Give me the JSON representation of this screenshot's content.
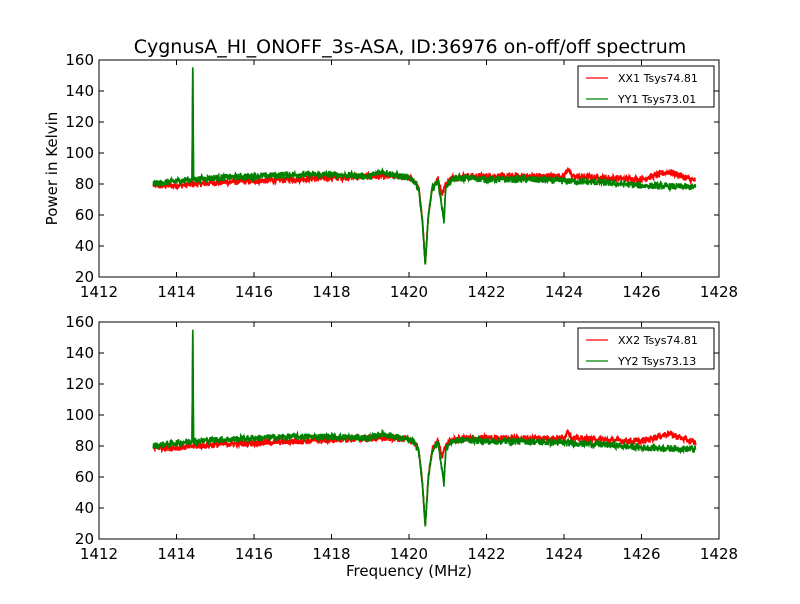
{
  "title": "CygnusA_HI_ONOFF_3s-ASA, ID:36976 on-off/off spectrum",
  "colors": {
    "xx": "#ff0000",
    "yy": "#008000"
  },
  "chart_data": [
    {
      "type": "line",
      "title": "CygnusA_HI_ONOFF_3s-ASA, ID:36976 on-off/off spectrum",
      "xlabel": "",
      "ylabel": "Power in Kelvin",
      "xlim": [
        1412,
        1428
      ],
      "ylim": [
        20,
        160
      ],
      "xticks": [
        "1412",
        "1414",
        "1416",
        "1418",
        "1420",
        "1422",
        "1424",
        "1426",
        "1428"
      ],
      "yticks": [
        "20",
        "40",
        "60",
        "80",
        "100",
        "120",
        "140",
        "160"
      ],
      "legend": "top-right",
      "series": [
        {
          "name": "XX1 Tsys74.81",
          "color": "#ff0000",
          "x": [
            1413.4,
            1414.0,
            1415.0,
            1416.0,
            1417.0,
            1418.0,
            1419.0,
            1419.8,
            1420.1,
            1420.25,
            1420.35,
            1420.42,
            1420.5,
            1420.6,
            1420.75,
            1420.85,
            1420.95,
            1421.1,
            1421.5,
            1422.0,
            1423.0,
            1424.0,
            1424.1,
            1424.2,
            1425.0,
            1426.0,
            1426.7,
            1427.4
          ],
          "y": [
            79,
            79,
            81,
            82,
            83,
            84,
            85,
            85,
            83,
            78,
            55,
            29,
            60,
            78,
            83,
            74,
            80,
            84,
            85,
            85,
            85,
            85,
            90,
            85,
            84,
            83,
            88,
            82
          ]
        },
        {
          "name": "YY1 Tsys73.01",
          "color": "#008000",
          "x": [
            1413.4,
            1414.0,
            1414.4,
            1414.42,
            1414.44,
            1415.0,
            1416.0,
            1417.0,
            1418.0,
            1419.0,
            1419.3,
            1419.8,
            1420.1,
            1420.25,
            1420.35,
            1420.42,
            1420.5,
            1420.6,
            1420.75,
            1420.85,
            1420.9,
            1420.95,
            1421.1,
            1421.5,
            1422.0,
            1423.0,
            1424.0,
            1425.0,
            1426.0,
            1427.4
          ],
          "y": [
            80,
            82,
            83,
            155,
            83,
            84,
            85,
            86,
            86,
            85,
            88,
            85,
            83,
            77,
            54,
            28,
            60,
            77,
            82,
            65,
            56,
            78,
            83,
            84,
            83,
            83,
            82,
            81,
            79,
            78
          ]
        }
      ]
    },
    {
      "type": "line",
      "title": "",
      "xlabel": "Frequency (MHz)",
      "ylabel": "",
      "xlim": [
        1412,
        1428
      ],
      "ylim": [
        20,
        160
      ],
      "xticks": [
        "1412",
        "1414",
        "1416",
        "1418",
        "1420",
        "1422",
        "1424",
        "1426",
        "1428"
      ],
      "yticks": [
        "20",
        "40",
        "60",
        "80",
        "100",
        "120",
        "140",
        "160"
      ],
      "legend": "top-right",
      "series": [
        {
          "name": "XX2 Tsys74.81",
          "color": "#ff0000",
          "x": [
            1413.4,
            1414.0,
            1415.0,
            1416.0,
            1417.0,
            1418.0,
            1419.0,
            1419.8,
            1420.1,
            1420.25,
            1420.35,
            1420.42,
            1420.5,
            1420.6,
            1420.75,
            1420.85,
            1420.95,
            1421.1,
            1421.5,
            1422.0,
            1423.0,
            1424.0,
            1424.1,
            1424.2,
            1425.0,
            1426.0,
            1426.7,
            1427.4
          ],
          "y": [
            79,
            79,
            81,
            82,
            83,
            84,
            85,
            85,
            83,
            78,
            55,
            29,
            60,
            78,
            83,
            74,
            80,
            84,
            85,
            85,
            85,
            85,
            90,
            85,
            84,
            83,
            88,
            82
          ]
        },
        {
          "name": "YY2 Tsys73.13",
          "color": "#008000",
          "x": [
            1413.4,
            1414.0,
            1414.4,
            1414.42,
            1414.44,
            1415.0,
            1416.0,
            1417.0,
            1418.0,
            1419.0,
            1419.3,
            1419.8,
            1420.1,
            1420.25,
            1420.35,
            1420.42,
            1420.5,
            1420.6,
            1420.75,
            1420.85,
            1420.9,
            1420.95,
            1421.1,
            1421.5,
            1422.0,
            1423.0,
            1424.0,
            1425.0,
            1426.0,
            1427.4
          ],
          "y": [
            80,
            82,
            83,
            155,
            83,
            84,
            85,
            86,
            86,
            85,
            88,
            85,
            83,
            77,
            54,
            28,
            60,
            77,
            82,
            65,
            56,
            78,
            83,
            84,
            83,
            83,
            82,
            81,
            79,
            78
          ]
        }
      ]
    }
  ]
}
